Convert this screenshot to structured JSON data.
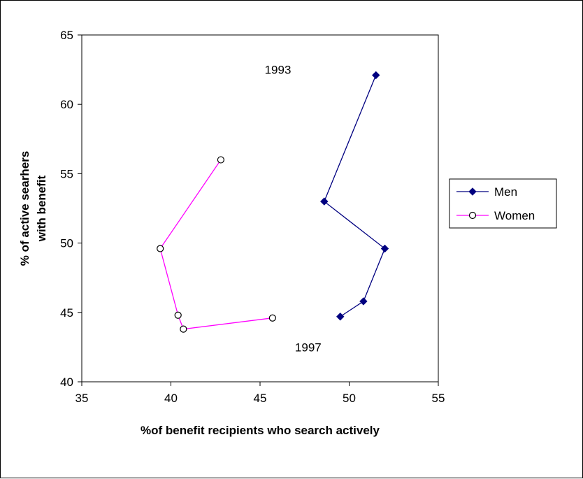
{
  "chart_data": {
    "type": "line",
    "title": "",
    "xlabel": "%of benefit recipients who search actively",
    "ylabel_lines": [
      "% of active searhers",
      "with benefit"
    ],
    "xlim": [
      35,
      55
    ],
    "ylim": [
      40,
      65
    ],
    "xticks": [
      35,
      40,
      45,
      50,
      55
    ],
    "yticks": [
      40,
      45,
      50,
      55,
      60,
      65
    ],
    "grid": false,
    "legend_position": "right",
    "annotations": [
      {
        "text": "1993",
        "x": 46.0,
        "y": 62.5
      },
      {
        "text": "1997",
        "x": 47.7,
        "y": 42.5
      }
    ],
    "series": [
      {
        "name": "Men",
        "color": "#000080",
        "marker": "diamond",
        "points": [
          [
            51.5,
            62.1
          ],
          [
            48.6,
            53.0
          ],
          [
            52.0,
            49.6
          ],
          [
            50.8,
            45.8
          ],
          [
            49.5,
            44.7
          ]
        ]
      },
      {
        "name": "Women",
        "color": "#ff00ff",
        "marker": "circle",
        "points": [
          [
            42.8,
            56.0
          ],
          [
            39.4,
            49.6
          ],
          [
            40.4,
            44.8
          ],
          [
            40.7,
            43.8
          ],
          [
            45.7,
            44.6
          ]
        ]
      }
    ]
  }
}
